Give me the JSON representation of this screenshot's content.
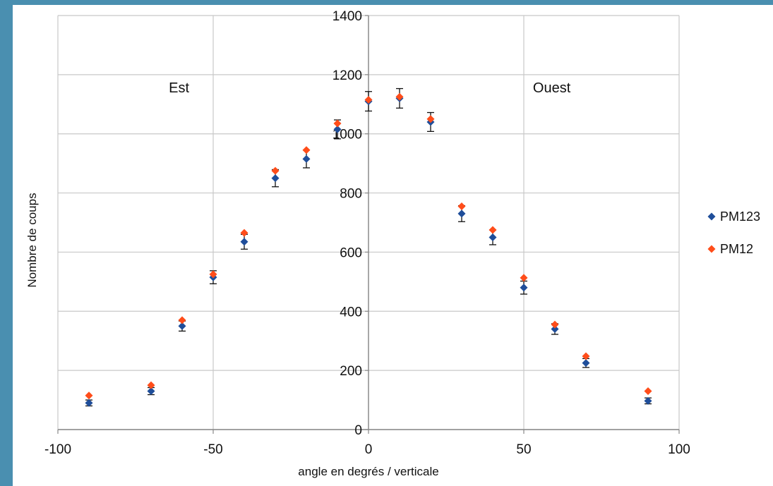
{
  "colors": {
    "background": "#4a8fb0",
    "grid": "#c8c8c8"
  },
  "chart_data": {
    "type": "scatter",
    "title": "",
    "xlabel": "angle en degrés / verticale",
    "ylabel": "Nombre de coups",
    "xlim": [
      -100,
      100
    ],
    "ylim": [
      0,
      1400
    ],
    "xticks": [
      -100,
      -50,
      0,
      50,
      100
    ],
    "yticks": [
      0,
      200,
      400,
      600,
      800,
      1000,
      1200,
      1400
    ],
    "grid": true,
    "legend": "right",
    "annotations": [
      {
        "text": "Est",
        "x": -61,
        "y": 1140
      },
      {
        "text": "Ouest",
        "x": 59,
        "y": 1140
      }
    ],
    "series": [
      {
        "name": "PM123",
        "color": "#1f4e9a",
        "marker": "diamond",
        "x": [
          -90,
          -70,
          -60,
          -50,
          -40,
          -30,
          -20,
          -10,
          0,
          10,
          20,
          30,
          40,
          50,
          60,
          70,
          90
        ],
        "y": [
          90,
          130,
          350,
          515,
          635,
          850,
          915,
          1015,
          1110,
          1120,
          1040,
          730,
          650,
          480,
          340,
          225,
          97
        ],
        "error": [
          10,
          12,
          17,
          22,
          25,
          29,
          30,
          32,
          33,
          33,
          32,
          27,
          25,
          22,
          18,
          15,
          10
        ]
      },
      {
        "name": "PM12",
        "color": "#ff4d1a",
        "marker": "diamond",
        "x": [
          -90,
          -70,
          -60,
          -50,
          -40,
          -30,
          -20,
          -10,
          0,
          10,
          20,
          30,
          40,
          50,
          60,
          70,
          90
        ],
        "y": [
          115,
          150,
          370,
          525,
          665,
          875,
          945,
          1035,
          1115,
          1125,
          1050,
          755,
          675,
          513,
          355,
          248,
          130
        ]
      }
    ]
  }
}
